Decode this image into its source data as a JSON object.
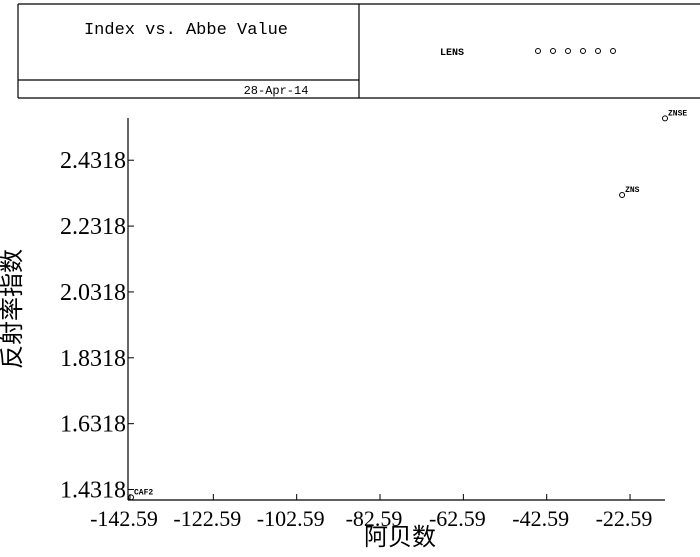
{
  "chart_data": {
    "type": "scatter",
    "title": "Index vs. Abbe Value",
    "date": "28-Apr-14",
    "x_label": "阿贝数",
    "y_label": "反射率指数",
    "series": [
      {
        "name": "LENS",
        "color": "#000000",
        "x": [
          -142.35,
          -24.5,
          -14.2
        ],
        "values": [
          1.408,
          2.326,
          2.559
        ],
        "labels": [
          "CAF2",
          "ZNS",
          "ZNSE"
        ]
      }
    ],
    "xlim": [
      -142.59,
      -14.2
    ],
    "ylim": [
      1.4,
      2.56
    ],
    "xticks": [
      -142.59,
      -122.59,
      -102.59,
      -82.59,
      -62.59,
      -42.59,
      -22.59
    ],
    "yticks": [
      1.4318,
      1.6318,
      1.8318,
      2.0318,
      2.2318,
      2.4318
    ]
  }
}
